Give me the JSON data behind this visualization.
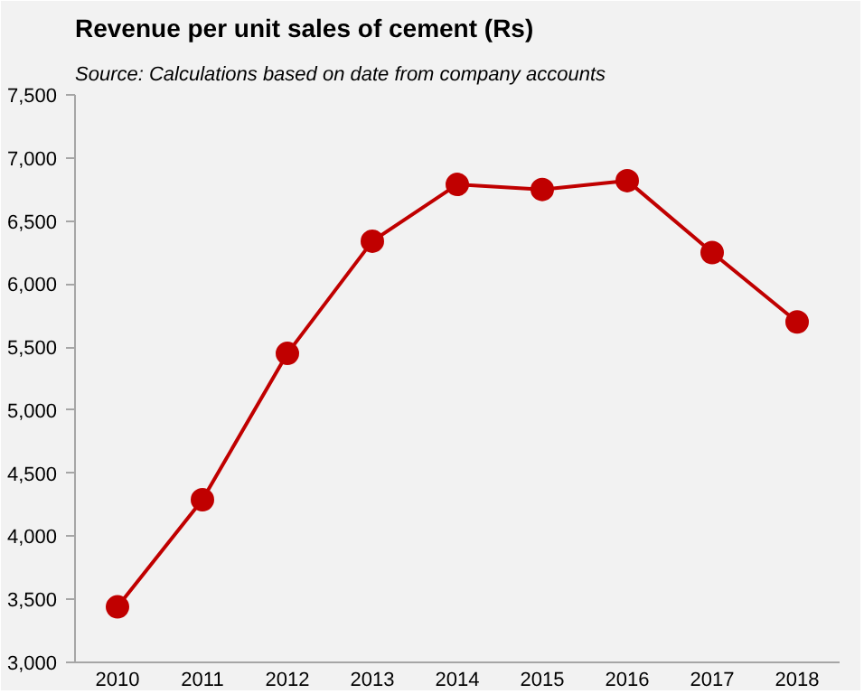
{
  "chart_data": {
    "type": "line",
    "title": "Revenue per unit sales of cement (Rs)",
    "subtitle": "Source: Calculations based on date from company accounts",
    "categories": [
      "2010",
      "2011",
      "2012",
      "2013",
      "2014",
      "2015",
      "2016",
      "2017",
      "2018"
    ],
    "series": [
      {
        "color": "#c00000",
        "values": [
          3440,
          4290,
          5450,
          6340,
          6790,
          6750,
          6820,
          6250,
          5700
        ]
      }
    ],
    "ylim": [
      3000,
      7500
    ],
    "yticks": [
      {
        "value": 3000,
        "label": "3,000"
      },
      {
        "value": 3500,
        "label": "3,500"
      },
      {
        "value": 4000,
        "label": "4,000"
      },
      {
        "value": 4500,
        "label": "4,500"
      },
      {
        "value": 5000,
        "label": "5,000"
      },
      {
        "value": 5500,
        "label": "5,500"
      },
      {
        "value": 6000,
        "label": "6,000"
      },
      {
        "value": 6500,
        "label": "6,500"
      },
      {
        "value": 7000,
        "label": "7,000"
      },
      {
        "value": 7500,
        "label": "7,500"
      }
    ],
    "grid": false,
    "marker": "circle",
    "line_style": "solid"
  }
}
